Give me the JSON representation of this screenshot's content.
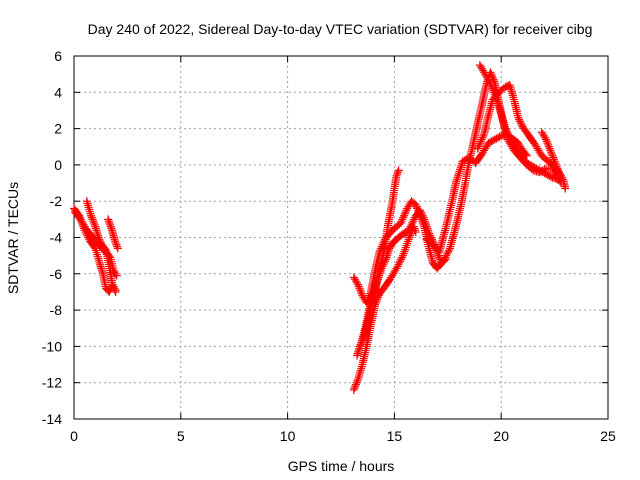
{
  "chart_data": {
    "type": "scatter",
    "title": "Day 240 of 2022, Sidereal Day-to-day VTEC variation (SDTVAR) for receiver cibg",
    "xlabel": "GPS time / hours",
    "ylabel": "SDTVAR / TECUs",
    "xlim": [
      0,
      25
    ],
    "ylim": [
      -14,
      6
    ],
    "xticks": [
      0,
      5,
      10,
      15,
      20,
      25
    ],
    "yticks": [
      -14,
      -12,
      -10,
      -8,
      -6,
      -4,
      -2,
      0,
      2,
      4,
      6
    ],
    "grid": true,
    "marker": "+",
    "series": [
      {
        "name": "SDTVAR",
        "color": "#ff0000",
        "segments": [
          [
            [
              0.0,
              -2.4
            ],
            [
              0.25,
              -2.8
            ],
            [
              0.5,
              -3.6
            ],
            [
              0.75,
              -4.2
            ],
            [
              1.0,
              -4.6
            ],
            [
              1.2,
              -5.4
            ],
            [
              1.35,
              -6.0
            ],
            [
              1.5,
              -6.8
            ],
            [
              1.65,
              -7.0
            ],
            [
              1.8,
              -6.6
            ],
            [
              1.95,
              -6.9
            ]
          ],
          [
            [
              0.05,
              -2.6
            ],
            [
              0.3,
              -3.0
            ],
            [
              0.55,
              -3.5
            ],
            [
              0.8,
              -3.9
            ],
            [
              1.05,
              -4.2
            ],
            [
              1.3,
              -4.6
            ],
            [
              1.5,
              -4.8
            ],
            [
              1.7,
              -5.1
            ],
            [
              1.85,
              -5.8
            ],
            [
              2.0,
              -6.1
            ]
          ],
          [
            [
              0.6,
              -2.0
            ],
            [
              0.8,
              -2.8
            ],
            [
              1.0,
              -3.4
            ],
            [
              1.15,
              -4.0
            ],
            [
              1.3,
              -4.4
            ],
            [
              1.5,
              -4.7
            ],
            [
              1.65,
              -5.6
            ],
            [
              1.8,
              -6.6
            ],
            [
              1.95,
              -7.0
            ]
          ],
          [
            [
              1.6,
              -3.0
            ],
            [
              1.75,
              -3.5
            ],
            [
              1.85,
              -3.9
            ],
            [
              1.95,
              -4.3
            ],
            [
              2.05,
              -4.6
            ]
          ],
          [
            [
              13.1,
              -12.4
            ],
            [
              13.3,
              -11.8
            ],
            [
              13.5,
              -11.0
            ],
            [
              13.7,
              -10.0
            ],
            [
              13.9,
              -8.8
            ],
            [
              14.1,
              -7.7
            ],
            [
              14.3,
              -7.1
            ],
            [
              14.5,
              -6.8
            ],
            [
              14.8,
              -6.3
            ],
            [
              15.1,
              -5.7
            ],
            [
              15.4,
              -5.0
            ],
            [
              15.7,
              -4.0
            ],
            [
              15.9,
              -3.4
            ],
            [
              16.0,
              -3.7
            ]
          ],
          [
            [
              13.25,
              -10.5
            ],
            [
              13.45,
              -9.8
            ],
            [
              13.65,
              -8.9
            ],
            [
              13.85,
              -7.8
            ],
            [
              14.05,
              -7.0
            ],
            [
              14.25,
              -6.1
            ],
            [
              14.45,
              -5.1
            ],
            [
              14.6,
              -4.1
            ],
            [
              14.75,
              -3.0
            ],
            [
              14.9,
              -2.1
            ],
            [
              15.0,
              -1.3
            ],
            [
              15.1,
              -0.6
            ],
            [
              15.2,
              -0.3
            ]
          ],
          [
            [
              13.1,
              -6.2
            ],
            [
              13.3,
              -6.6
            ],
            [
              13.5,
              -7.2
            ],
            [
              13.7,
              -7.6
            ],
            [
              13.9,
              -7.0
            ],
            [
              14.1,
              -5.8
            ],
            [
              14.3,
              -4.8
            ],
            [
              14.6,
              -4.0
            ],
            [
              15.0,
              -3.5
            ],
            [
              15.3,
              -3.2
            ],
            [
              15.6,
              -2.4
            ],
            [
              15.8,
              -2.0
            ],
            [
              16.0,
              -2.2
            ],
            [
              16.2,
              -2.8
            ],
            [
              16.4,
              -3.4
            ],
            [
              16.6,
              -4.5
            ],
            [
              16.8,
              -5.4
            ],
            [
              17.0,
              -5.7
            ],
            [
              17.3,
              -5.3
            ],
            [
              17.6,
              -4.6
            ],
            [
              17.9,
              -3.3
            ],
            [
              18.1,
              -2.3
            ],
            [
              18.3,
              -1.1
            ],
            [
              18.5,
              0.2
            ],
            [
              18.7,
              1.2
            ],
            [
              18.9,
              2.3
            ],
            [
              19.1,
              3.3
            ],
            [
              19.3,
              4.4
            ],
            [
              19.5,
              5.1
            ],
            [
              19.7,
              4.5
            ],
            [
              19.9,
              3.4
            ],
            [
              20.1,
              2.3
            ],
            [
              20.3,
              1.4
            ],
            [
              20.6,
              0.8
            ],
            [
              20.9,
              0.4
            ],
            [
              21.2,
              0.0
            ],
            [
              21.5,
              -0.3
            ],
            [
              21.8,
              -0.4
            ],
            [
              22.1,
              -0.2
            ],
            [
              22.4,
              -0.2
            ],
            [
              22.6,
              -0.6
            ],
            [
              22.8,
              -1.0
            ]
          ],
          [
            [
              16.5,
              -4.1
            ],
            [
              16.8,
              -4.4
            ],
            [
              17.1,
              -4.8
            ],
            [
              17.4,
              -3.5
            ],
            [
              17.7,
              -2.0
            ],
            [
              17.9,
              -0.9
            ],
            [
              18.2,
              0.2
            ],
            [
              18.5,
              0.4
            ],
            [
              18.8,
              0.1
            ],
            [
              19.1,
              0.6
            ],
            [
              19.4,
              1.2
            ],
            [
              19.7,
              1.4
            ],
            [
              20.0,
              1.6
            ],
            [
              20.3,
              1.7
            ],
            [
              20.6,
              1.2
            ],
            [
              20.9,
              0.5
            ],
            [
              21.2,
              0.1
            ],
            [
              21.5,
              -0.1
            ],
            [
              21.8,
              -0.3
            ],
            [
              22.1,
              -0.5
            ],
            [
              22.4,
              -0.7
            ],
            [
              22.7,
              -0.8
            ]
          ],
          [
            [
              18.9,
              0.9
            ],
            [
              19.2,
              1.7
            ],
            [
              19.4,
              2.7
            ],
            [
              19.6,
              3.6
            ],
            [
              19.9,
              4.0
            ],
            [
              20.2,
              4.3
            ],
            [
              20.4,
              4.4
            ],
            [
              20.6,
              3.6
            ],
            [
              20.8,
              2.6
            ],
            [
              21.0,
              2.1
            ],
            [
              21.3,
              1.6
            ],
            [
              21.6,
              1.1
            ],
            [
              21.9,
              0.5
            ],
            [
              22.2,
              0.2
            ],
            [
              22.5,
              -0.1
            ],
            [
              22.8,
              -0.6
            ]
          ],
          [
            [
              19.0,
              5.5
            ],
            [
              19.2,
              5.1
            ],
            [
              19.4,
              4.7
            ],
            [
              19.6,
              4.2
            ],
            [
              19.8,
              3.6
            ],
            [
              20.0,
              2.8
            ],
            [
              20.2,
              2.0
            ],
            [
              20.4,
              1.5
            ],
            [
              20.6,
              1.4
            ],
            [
              20.8,
              1.2
            ],
            [
              21.0,
              0.8
            ],
            [
              21.2,
              0.5
            ]
          ],
          [
            [
              21.9,
              1.8
            ],
            [
              22.1,
              1.4
            ],
            [
              22.3,
              0.8
            ],
            [
              22.5,
              0.2
            ],
            [
              22.7,
              -0.4
            ],
            [
              22.9,
              -0.8
            ],
            [
              23.0,
              -1.3
            ]
          ],
          [
            [
              13.4,
              -10.0
            ],
            [
              13.6,
              -9.4
            ],
            [
              13.8,
              -8.4
            ],
            [
              14.0,
              -7.4
            ],
            [
              14.2,
              -6.4
            ],
            [
              14.4,
              -5.7
            ],
            [
              14.6,
              -5.2
            ],
            [
              14.8,
              -4.5
            ],
            [
              15.0,
              -4.2
            ],
            [
              15.2,
              -4.0
            ],
            [
              15.4,
              -3.8
            ],
            [
              15.6,
              -3.7
            ],
            [
              15.8,
              -3.3
            ],
            [
              16.0,
              -2.8
            ],
            [
              16.2,
              -2.5
            ],
            [
              16.4,
              -3.0
            ],
            [
              16.6,
              -3.7
            ],
            [
              16.8,
              -4.2
            ],
            [
              17.0,
              -4.8
            ],
            [
              17.2,
              -5.4
            ],
            [
              17.4,
              -5.2
            ]
          ]
        ]
      }
    ]
  }
}
